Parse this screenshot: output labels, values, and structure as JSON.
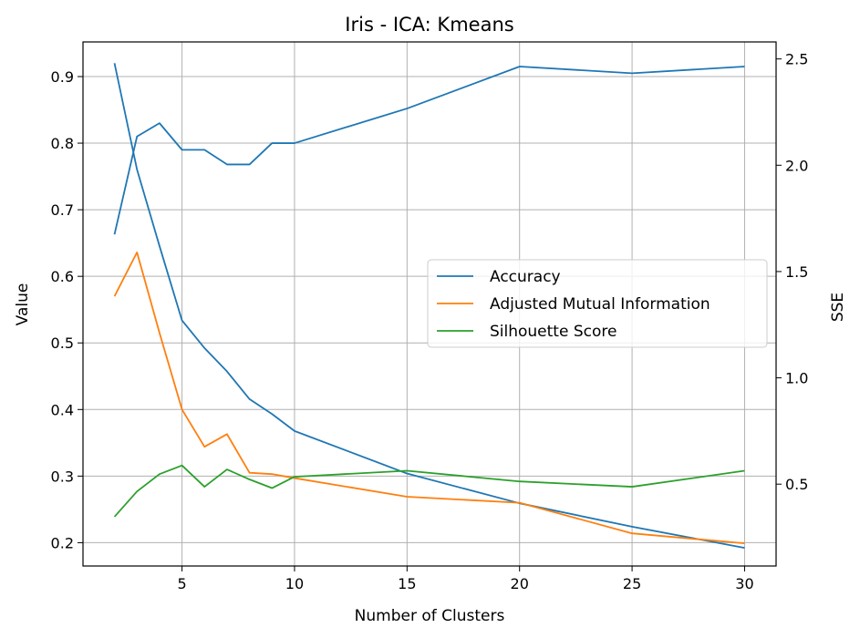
{
  "chart_data": {
    "type": "line",
    "title": "Iris - ICA: Kmeans",
    "xlabel": "Number of Clusters",
    "ylabel": "Value",
    "y2label": "SSE",
    "xlim": [
      0.6,
      31.4
    ],
    "ylim": [
      0.165,
      0.952
    ],
    "y2lim": [
      0.115,
      2.58
    ],
    "xticks": [
      5,
      10,
      15,
      20,
      25,
      30
    ],
    "yticks": [
      0.2,
      0.3,
      0.4,
      0.5,
      0.6,
      0.7,
      0.8,
      0.9
    ],
    "y2ticks": [
      0.5,
      1.0,
      1.5,
      2.0,
      2.5
    ],
    "grid": true,
    "legend_position": "center-right",
    "x": [
      2,
      3,
      4,
      5,
      6,
      7,
      8,
      9,
      10,
      15,
      20,
      25,
      30
    ],
    "series": [
      {
        "name": "Accuracy",
        "axis": "left",
        "color": "#1f77b4",
        "values": [
          0.663,
          0.81,
          0.83,
          0.79,
          0.79,
          0.768,
          0.768,
          0.8,
          0.8,
          0.852,
          0.915,
          0.905,
          0.915
        ]
      },
      {
        "name": "Adjusted Mutual Information",
        "axis": "left",
        "color": "#ff7f0e",
        "values": [
          0.57,
          0.636,
          0.515,
          0.4,
          0.344,
          0.363,
          0.305,
          0.303,
          0.297,
          0.269,
          0.26,
          0.214,
          0.199
        ]
      },
      {
        "name": "Silhouette Score",
        "axis": "left",
        "color": "#2ca02c",
        "values": [
          0.239,
          0.277,
          0.303,
          0.316,
          0.284,
          0.31,
          0.295,
          0.282,
          0.299,
          0.308,
          0.292,
          0.284,
          0.308
        ]
      },
      {
        "axis": "right",
        "color": "#1f77b4",
        "values": [
          2.48,
          1.98,
          1.62,
          1.27,
          1.14,
          1.03,
          0.9,
          0.83,
          0.75,
          0.55,
          0.41,
          0.3,
          0.2
        ]
      }
    ]
  }
}
